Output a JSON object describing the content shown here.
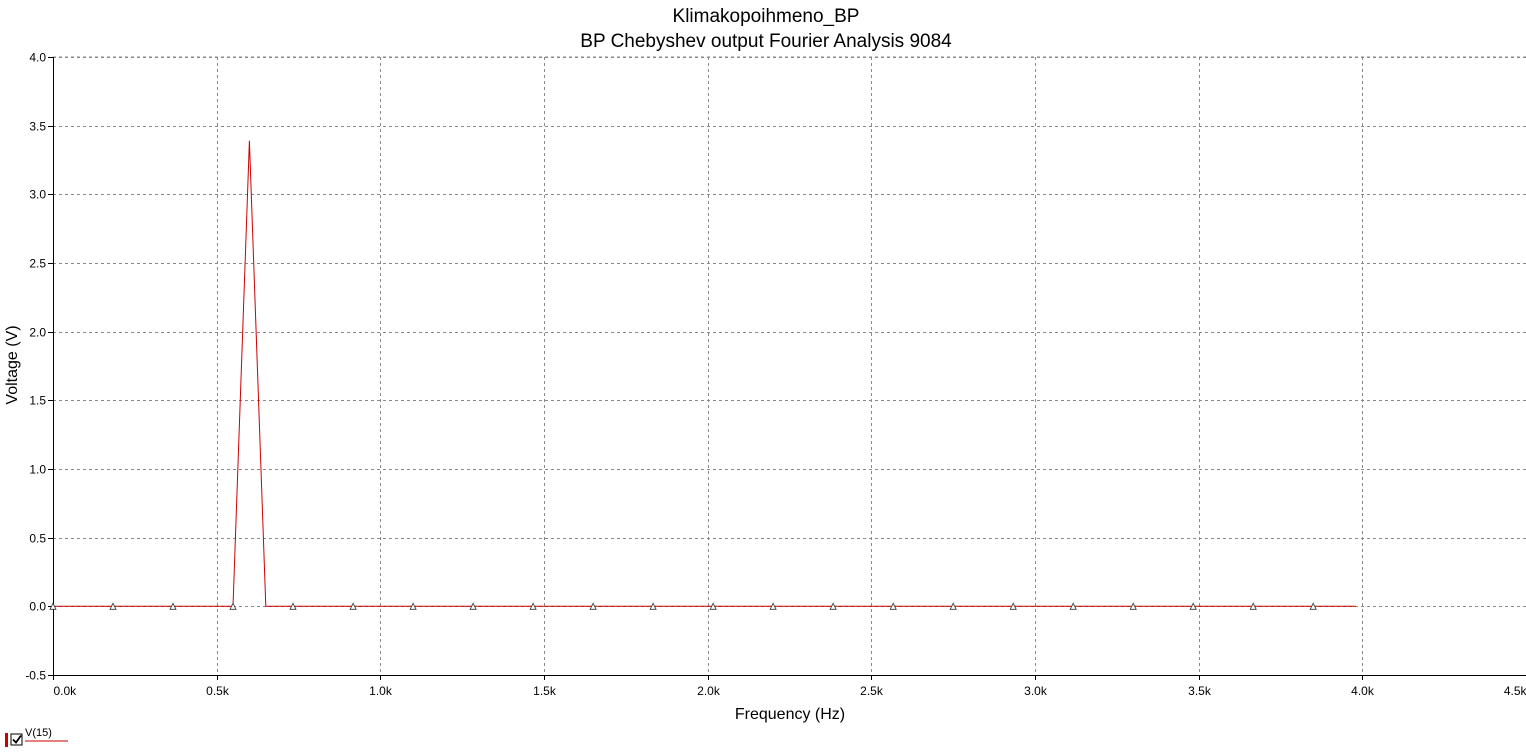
{
  "chart_data": {
    "type": "line",
    "title": "Klimakopoihmeno_BP",
    "subtitle": "BP Chebyshev output Fourier Analysis 9084",
    "xlabel": "Frequency (Hz)",
    "ylabel": "Voltage (V)",
    "xlim": [
      0,
      4500
    ],
    "ylim": [
      -0.5,
      4.0
    ],
    "x_ticks": [
      {
        "value": 0,
        "label": "0.0k"
      },
      {
        "value": 500,
        "label": "0.5k"
      },
      {
        "value": 1000,
        "label": "1.0k"
      },
      {
        "value": 1500,
        "label": "1.5k"
      },
      {
        "value": 2000,
        "label": "2.0k"
      },
      {
        "value": 2500,
        "label": "2.5k"
      },
      {
        "value": 3000,
        "label": "3.0k"
      },
      {
        "value": 3500,
        "label": "3.5k"
      },
      {
        "value": 4000,
        "label": "4.0k"
      },
      {
        "value": 4500,
        "label": "4.5k"
      }
    ],
    "y_ticks": [
      {
        "value": 4.0,
        "label": "4.0"
      },
      {
        "value": 3.5,
        "label": "3.5"
      },
      {
        "value": 3.0,
        "label": "3.0"
      },
      {
        "value": 2.5,
        "label": "2.5"
      },
      {
        "value": 2.0,
        "label": "2.0"
      },
      {
        "value": 1.5,
        "label": "1.5"
      },
      {
        "value": 1.0,
        "label": "1.0"
      },
      {
        "value": 0.5,
        "label": "0.5"
      },
      {
        "value": 0.0,
        "label": "0.0"
      },
      {
        "value": -0.5,
        "label": "-0.5"
      }
    ],
    "grid": true,
    "legend_placement": "bottom-left",
    "series": [
      {
        "name": "V(15)",
        "color": "#cc0000",
        "marker": "triangle",
        "fundamental_frequency": 600,
        "points": [
          {
            "x": 0,
            "y": 0
          },
          {
            "x": 550,
            "y": 0
          },
          {
            "x": 600,
            "y": 3.39
          },
          {
            "x": 650,
            "y": 0
          },
          {
            "x": 3980,
            "y": 0
          }
        ],
        "marker_x": [
          0,
          183.3,
          366.7,
          550,
          733.3,
          916.7,
          1100,
          1283.3,
          1466.7,
          1650,
          1833.3,
          2016.7,
          2200,
          2383.3,
          2566.7,
          2750,
          2933.3,
          3116.7,
          3300,
          3483.3,
          3666.7,
          3850
        ]
      }
    ]
  }
}
